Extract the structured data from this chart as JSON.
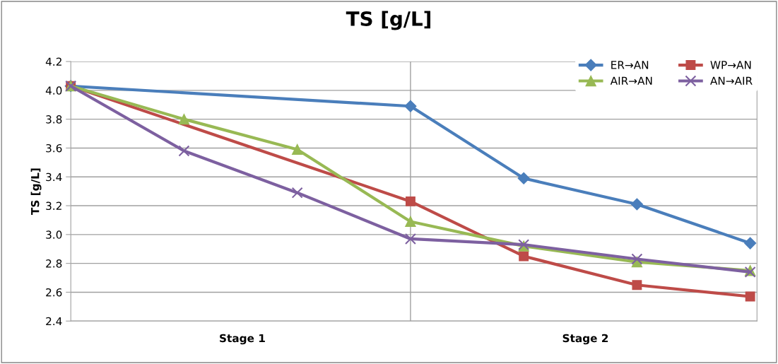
{
  "chart_data": {
    "type": "line",
    "title": "TS [g/L]",
    "ylabel": "TS [g/L]",
    "categories": [
      null,
      null,
      null,
      null,
      null,
      null,
      null
    ],
    "annotations": [
      "Stage 1",
      "Stage 2"
    ],
    "ylim": [
      2.4,
      4.2
    ],
    "yticks": [
      2.4,
      2.6,
      2.8,
      {
        "value": 3.0,
        "label": "3.0"
      },
      3.2,
      3.4,
      3.6,
      3.8,
      {
        "value": 4.0,
        "label": "4.0"
      },
      4.2
    ],
    "grid": "y",
    "legend": "top right",
    "series": [
      {
        "name": "ER→AN",
        "color": "#4a7ebb",
        "marker": "diamond",
        "values": [
          4.03,
          null,
          null,
          3.89,
          3.39,
          3.21,
          2.94
        ]
      },
      {
        "name": "WP→AN",
        "color": "#be4b48",
        "marker": "square",
        "values": [
          4.03,
          null,
          null,
          3.23,
          2.85,
          2.65,
          2.57
        ]
      },
      {
        "name": "AIR→AN",
        "color": "#98b954",
        "marker": "triangle",
        "values": [
          4.03,
          3.8,
          3.59,
          3.09,
          2.92,
          2.81,
          2.75
        ]
      },
      {
        "name": "AN→AIR",
        "color": "#7d60a0",
        "marker": "cross",
        "values": [
          4.03,
          3.58,
          3.29,
          2.97,
          2.93,
          2.83,
          2.74
        ]
      }
    ]
  }
}
